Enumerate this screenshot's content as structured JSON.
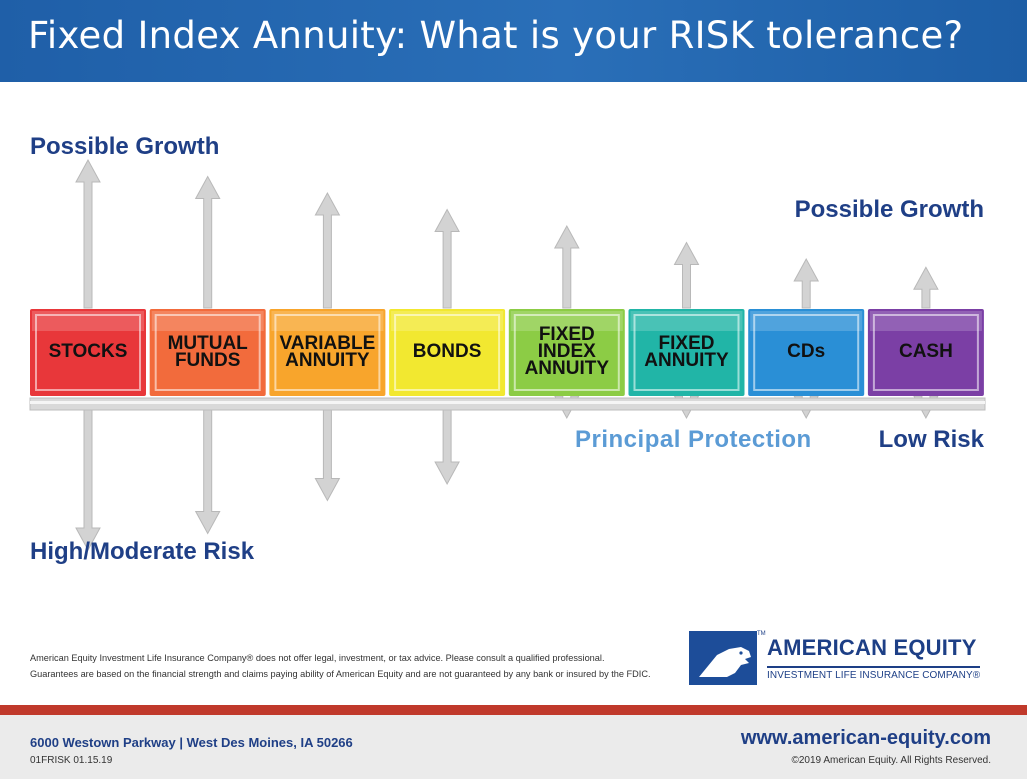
{
  "header": {
    "title": "Fixed Index Annuity: What is your RISK tolerance?"
  },
  "labels": {
    "growth_left": "Possible Growth",
    "growth_right": "Possible Growth",
    "principal_protection": "Principal Protection",
    "low_risk": "Low Risk",
    "high_risk": "High/Moderate Risk"
  },
  "diagram": {
    "boxes": [
      {
        "label": [
          "STOCKS"
        ],
        "color": "#e8373a",
        "up": 4,
        "down": 4
      },
      {
        "label": [
          "MUTUAL",
          "FUNDS"
        ],
        "color": "#f26b3c",
        "up": 3.5,
        "down": 3.5
      },
      {
        "label": [
          "VARIABLE",
          "ANNUITY"
        ],
        "color": "#f8a52c",
        "up": 3,
        "down": 2.5
      },
      {
        "label": [
          "BONDS"
        ],
        "color": "#f2e830",
        "up": 2.5,
        "down": 2
      },
      {
        "label": [
          "FIXED",
          "INDEX",
          "ANNUITY"
        ],
        "color": "#8ccc45",
        "up": 2,
        "down": 0
      },
      {
        "label": [
          "FIXED",
          "ANNUITY"
        ],
        "color": "#21b5a7",
        "up": 1.5,
        "down": 0
      },
      {
        "label": [
          "CDs"
        ],
        "color": "#2a8fd6",
        "up": 1,
        "down": 0
      },
      {
        "label": [
          "CASH"
        ],
        "color": "#7b3fa5",
        "up": 0.75,
        "down": 0
      }
    ]
  },
  "disclaimer": {
    "line1": "American Equity Investment Life Insurance Company® does not offer legal, investment, or tax advice. Please consult a qualified professional.",
    "line2": "Guarantees are based on the financial strength and claims paying ability of American Equity and are not guaranteed by any bank or insured by the FDIC."
  },
  "logo": {
    "name": "AMERICAN EQUITY",
    "sub": "INVESTMENT LIFE INSURANCE COMPANY®",
    "tm": "TM"
  },
  "footer": {
    "address": "6000 Westown Parkway | West Des Moines, IA 50266",
    "code": "01FRISK 01.15.19",
    "url": "www.american-equity.com",
    "copyright": "©2019 American Equity. All Rights Reserved."
  },
  "colors": {
    "header": "#1f5fa8",
    "navy": "#1f3f86",
    "accent": "#5b9bd5",
    "footer_bar": "#c0392b"
  }
}
